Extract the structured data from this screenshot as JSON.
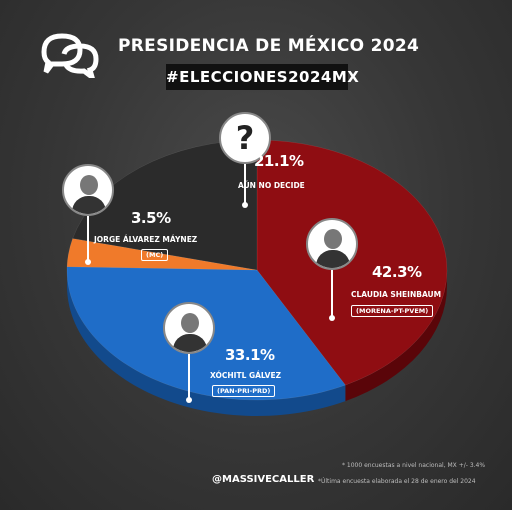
{
  "header": {
    "title": "PRESIDENCIA DE MÉXICO 2024",
    "hashtag": "#ELECCIONES2024MX"
  },
  "chart_data": {
    "type": "pie",
    "title": "PRESIDENCIA DE MÉXICO 2024",
    "slices": [
      {
        "label": "CLAUDIA SHEINBAUM",
        "party": "(MORENA-PT-PVEM)",
        "value": 42.3,
        "display": "42.3%",
        "color": "#8f0d12",
        "side_color": "#5a0509"
      },
      {
        "label": "XÓCHITL GÁLVEZ",
        "party": "(PAN-PRI-PRD)",
        "value": 33.1,
        "display": "33.1%",
        "color": "#1f6dc8",
        "side_color": "#124a8c"
      },
      {
        "label": "JORGE ÁLVAREZ MÁYNEZ",
        "party": "(MC)",
        "value": 3.5,
        "display": "3.5%",
        "color": "#f07a2a",
        "side_color": "#b5551a"
      },
      {
        "label": "AÚN NO DECIDE",
        "party": "",
        "value": 21.1,
        "display": "21.1%",
        "color": "#2b2b2b",
        "side_color": "#1a1a1a"
      }
    ]
  },
  "footer": {
    "handle": "@MASSIVECALLER",
    "note1": "* 1000 encuestas a nivel nacional, MX +/- 3.4%",
    "note2": "*Última encuesta elaborada el 28 de enero del 2024"
  }
}
